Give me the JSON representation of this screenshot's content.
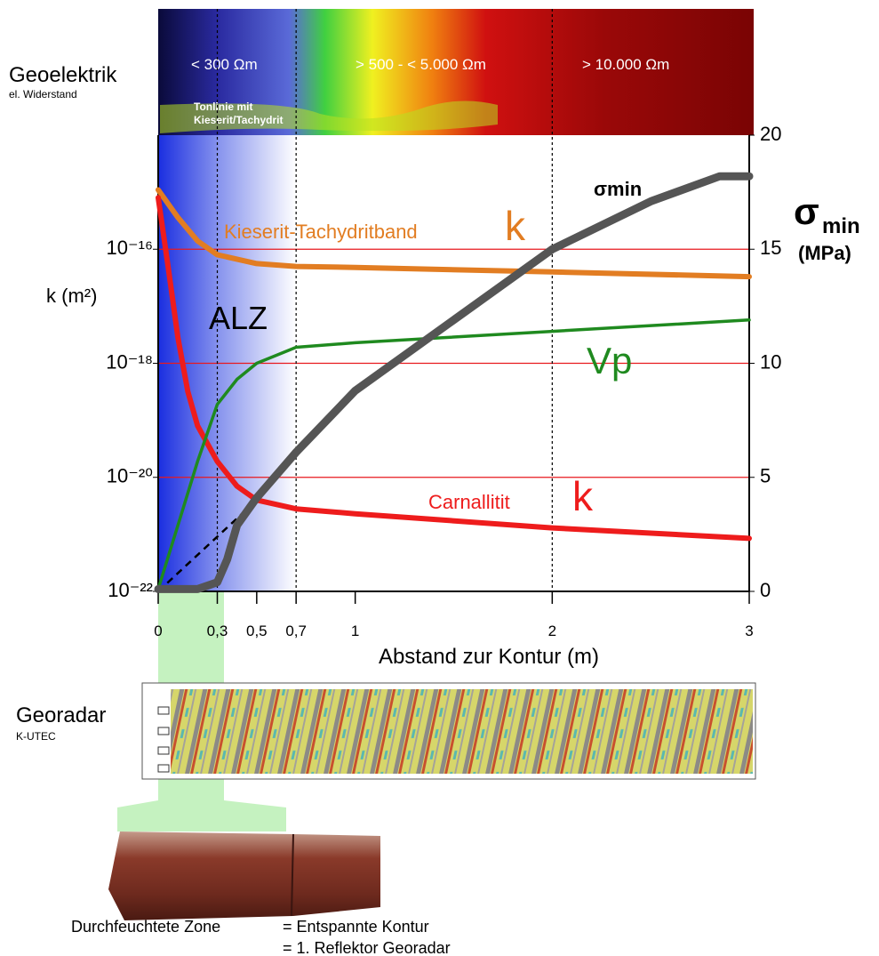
{
  "header": {
    "title": "Geoelektrik",
    "subtitle": "el. Widerstand",
    "zones": [
      "< 300 Ωm",
      "> 500 - < 5.000 Ωm",
      "> 10.000 Ωm"
    ],
    "note": [
      "Tonlinie mit",
      "Kieserit/Tachydrit"
    ]
  },
  "chart_data": {
    "type": "line",
    "x_label": "Abstand zur Kontur (m)",
    "y_label": "k (m²)",
    "y2_label": {
      "symbol": "σ",
      "subscript": "min",
      "unit": "(MPa)"
    },
    "xlim": [
      0,
      3
    ],
    "xticks": [
      0,
      {
        "value": 0.3,
        "label": "0,3"
      },
      {
        "value": 0.5,
        "label": "0,5"
      },
      {
        "value": 0.7,
        "label": "0,7"
      },
      1,
      2,
      3
    ],
    "ylim": [
      1e-22,
      1e-14
    ],
    "yscale": "log",
    "yticks": [
      {
        "value": 1e-22,
        "label": "10⁻²²"
      },
      {
        "value": 1e-20,
        "label": "10⁻²⁰"
      },
      {
        "value": 1e-18,
        "label": "10⁻¹⁸"
      },
      {
        "value": 1e-16,
        "label": "10⁻¹⁶"
      }
    ],
    "y2lim": [
      0,
      20
    ],
    "y2ticks": [
      0,
      5,
      10,
      15,
      20
    ],
    "grid": true,
    "grid_color": "#e8191e",
    "zone": {
      "label": "ALZ",
      "xlim": [
        0,
        0.7
      ]
    },
    "vlines": [
      0.3,
      0.7,
      2
    ],
    "reference_line": {
      "x": [
        0,
        0.5
      ],
      "values": [
        0,
        4
      ]
    },
    "series": [
      {
        "name": "Kieserit-Tachydritband",
        "symbol": "k",
        "color": "#e27d22",
        "x": [
          0,
          0.1,
          0.2,
          0.3,
          0.5,
          0.7,
          1,
          2,
          3
        ],
        "values": [
          1.1e-15,
          3.6e-16,
          1.4e-16,
          8e-17,
          5.6e-17,
          5e-17,
          4.8e-17,
          4e-17,
          3.3e-17
        ]
      },
      {
        "name": "Carnallitit",
        "symbol": "k",
        "color": "#ee1c1c",
        "x": [
          0,
          0.05,
          0.1,
          0.15,
          0.2,
          0.3,
          0.4,
          0.5,
          0.7,
          1,
          2,
          3
        ],
        "values": [
          8e-16,
          5e-17,
          2.8e-18,
          3.2e-19,
          8e-20,
          1.9e-20,
          7e-21,
          4e-21,
          2.8e-21,
          2.3e-21,
          1.3e-21,
          8.5e-22
        ]
      },
      {
        "name": "Vp",
        "color": "#1f8a1f",
        "axis": "y2",
        "x": [
          0,
          0.1,
          0.2,
          0.3,
          0.4,
          0.5,
          0.7,
          1,
          2,
          3
        ],
        "values": [
          0.1,
          2.9,
          5.7,
          8.2,
          9.3,
          10,
          10.7,
          10.9,
          11.4,
          11.9
        ]
      },
      {
        "name": "σmin",
        "color": "#555555",
        "axis": "y2",
        "x": [
          0,
          0.2,
          0.3,
          0.35,
          0.4,
          0.5,
          0.7,
          1,
          1.5,
          2,
          2.5,
          2.85,
          3
        ],
        "values": [
          0.1,
          0.1,
          0.4,
          1.4,
          2.9,
          4.1,
          6.1,
          8.8,
          11.9,
          15,
          17.1,
          18.2,
          18.2
        ]
      }
    ]
  },
  "georadar": {
    "title": "Georadar",
    "subtitle": "K-UTEC"
  },
  "core": {
    "caption": "Durchfeuchtete Zone",
    "equals": [
      "= Entspannte Kontur",
      "= 1. Reflektor Georadar"
    ]
  }
}
